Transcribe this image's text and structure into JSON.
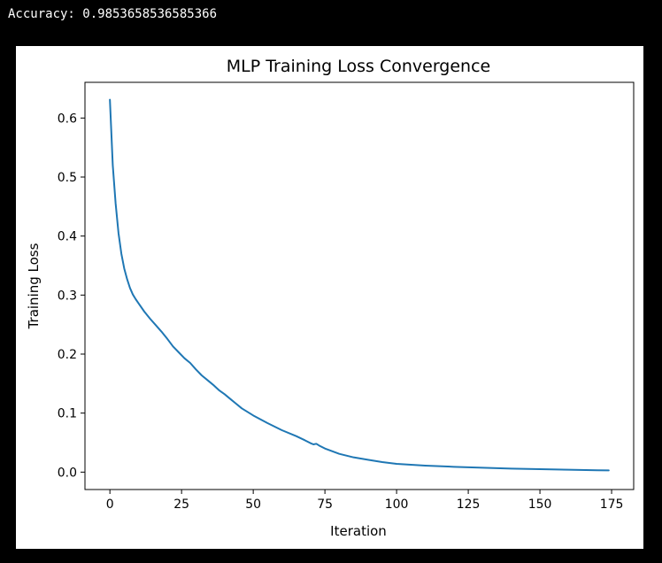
{
  "output": {
    "text": "Accuracy: 0.9853658536585366"
  },
  "colors": {
    "background": "#000000",
    "figure_bg": "#ffffff",
    "series_line": "#1f77b4"
  },
  "chart_data": {
    "type": "line",
    "title": "MLP Training Loss Convergence",
    "xlabel": "Iteration",
    "ylabel": "Training Loss",
    "xlim": [
      -8.7,
      182.7
    ],
    "ylim": [
      -0.0295,
      0.6605
    ],
    "xticks": [
      0,
      25,
      50,
      75,
      100,
      125,
      150,
      175
    ],
    "yticks": [
      0.0,
      0.1,
      0.2,
      0.3,
      0.4,
      0.5,
      0.6
    ],
    "ytick_labels": [
      "0.0",
      "0.1",
      "0.2",
      "0.3",
      "0.4",
      "0.5",
      "0.6"
    ],
    "grid": false,
    "series": [
      {
        "name": "Training Loss",
        "x": [
          0,
          1,
          2,
          3,
          4,
          5,
          6,
          7,
          8,
          9,
          10,
          12,
          14,
          16,
          18,
          20,
          22,
          24,
          26,
          28,
          30,
          32,
          34,
          36,
          38,
          40,
          42,
          44,
          46,
          48,
          50,
          55,
          60,
          65,
          68,
          70,
          71,
          72,
          73,
          75,
          80,
          85,
          90,
          95,
          100,
          110,
          120,
          130,
          140,
          150,
          160,
          170,
          174
        ],
        "values": [
          0.631,
          0.52,
          0.455,
          0.405,
          0.37,
          0.345,
          0.327,
          0.312,
          0.301,
          0.293,
          0.286,
          0.272,
          0.26,
          0.249,
          0.238,
          0.226,
          0.213,
          0.203,
          0.193,
          0.185,
          0.174,
          0.164,
          0.156,
          0.148,
          0.139,
          0.132,
          0.124,
          0.116,
          0.108,
          0.102,
          0.096,
          0.083,
          0.071,
          0.061,
          0.054,
          0.049,
          0.047,
          0.048,
          0.045,
          0.04,
          0.031,
          0.025,
          0.021,
          0.017,
          0.014,
          0.011,
          0.009,
          0.0075,
          0.006,
          0.005,
          0.004,
          0.0032,
          0.003
        ]
      }
    ]
  }
}
